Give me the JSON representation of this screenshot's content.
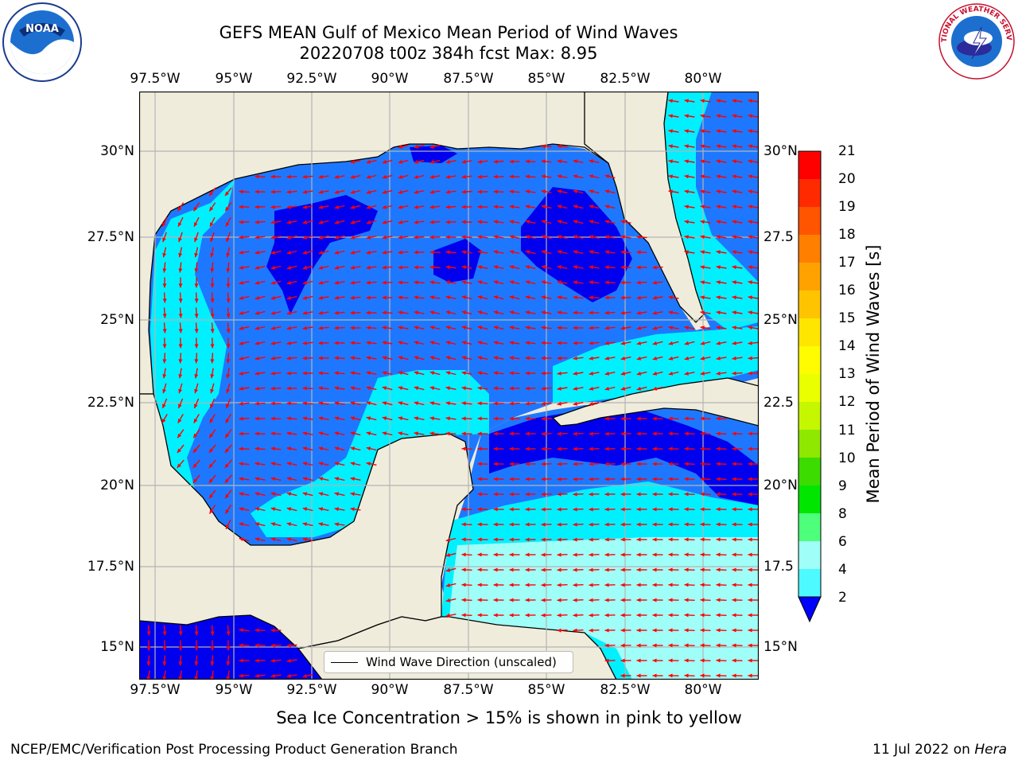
{
  "title": {
    "line1": "GEFS MEAN Gulf of Mexico Mean Period of Wind Waves",
    "line2": "20220708 t00z 384h fcst   Max: 8.95"
  },
  "axes": {
    "lon_labels": [
      "97.5°W",
      "95°W",
      "92.5°W",
      "90°W",
      "87.5°W",
      "85°W",
      "82.5°W",
      "80°W"
    ],
    "lat_labels": [
      "30°N",
      "27.5°N",
      "25°N",
      "22.5°N",
      "20°N",
      "17.5°N",
      "15°N"
    ],
    "lat_labels_right": [
      "30°N",
      "27.5",
      "25°N",
      "22.5",
      "20°N",
      "17.5",
      "15°N"
    ]
  },
  "colorbar": {
    "label": "Mean Period of Wind Waves [s]",
    "ticks": [
      "21",
      "20",
      "19",
      "18",
      "17",
      "16",
      "15",
      "14",
      "13",
      "12",
      "11",
      "10",
      "9",
      "8",
      "6",
      "4",
      "2"
    ],
    "colors": [
      "#ff0000",
      "#ff2a00",
      "#ff5500",
      "#ff7f00",
      "#ffa200",
      "#ffc400",
      "#ffe600",
      "#fffb00",
      "#eaff00",
      "#c4f700",
      "#8ee800",
      "#3ddc00",
      "#00e600",
      "#4dff7a",
      "#9ffff8",
      "#4dfaff",
      "#00eaff",
      "#1e90ff",
      "#0000ff"
    ]
  },
  "legend": {
    "label": "Wind Wave Direction (unscaled)"
  },
  "colors": {
    "land": "#efecdc",
    "dark_blue": "#0000ee",
    "mid_blue": "#1e78ff",
    "cyan": "#00f0ff",
    "light_cyan": "#9ffff8",
    "arrow": "#ff0000",
    "coast": "#000000",
    "grid": "#b4b4b4"
  },
  "note": "Sea Ice Concentration > 15% is shown in pink to yellow",
  "footer": {
    "left": "NCEP/EMC/Verification Post Processing Product Generation Branch",
    "right_date": "11 Jul 2022 on",
    "right_host": "Hera"
  },
  "logos": {
    "noaa_text": "NOAA",
    "nws_text": "NATIONAL WEATHER SERVICE"
  }
}
